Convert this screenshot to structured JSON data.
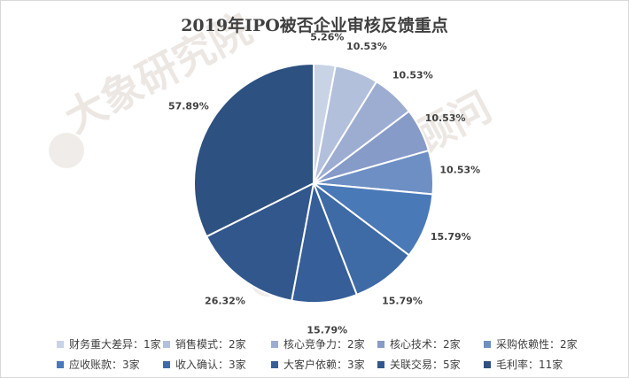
{
  "chart_data": {
    "type": "pie",
    "title": "2019年IPO被否企业审核反馈重点",
    "watermarks": [
      "大象研究院",
      "大象投资顾问"
    ],
    "slices": [
      {
        "label": "财务重大差异：1家",
        "count": 1,
        "percent_label": "5.26%",
        "color": "#c9d3e6"
      },
      {
        "label": "销售模式：2家",
        "count": 2,
        "percent_label": "10.53%",
        "color": "#b3c0dc"
      },
      {
        "label": "核心竞争力：2家",
        "count": 2,
        "percent_label": "10.53%",
        "color": "#9dadd2"
      },
      {
        "label": "核心技术：2家",
        "count": 2,
        "percent_label": "10.53%",
        "color": "#879bc8"
      },
      {
        "label": "采购依赖性：2家",
        "count": 2,
        "percent_label": "10.53%",
        "color": "#6d8fc4"
      },
      {
        "label": "应收账款：3家",
        "count": 3,
        "percent_label": "15.79%",
        "color": "#4a79b8"
      },
      {
        "label": "收入确认：3家",
        "count": 3,
        "percent_label": "15.79%",
        "color": "#3e6aa6"
      },
      {
        "label": "大客户依赖：3家",
        "count": 3,
        "percent_label": "15.79%",
        "color": "#365e98"
      },
      {
        "label": "关联交易：5家",
        "count": 5,
        "percent_label": "26.32%",
        "color": "#31578c"
      },
      {
        "label": "毛利率：11家",
        "count": 11,
        "percent_label": "57.89%",
        "color": "#2d5180"
      }
    ]
  }
}
